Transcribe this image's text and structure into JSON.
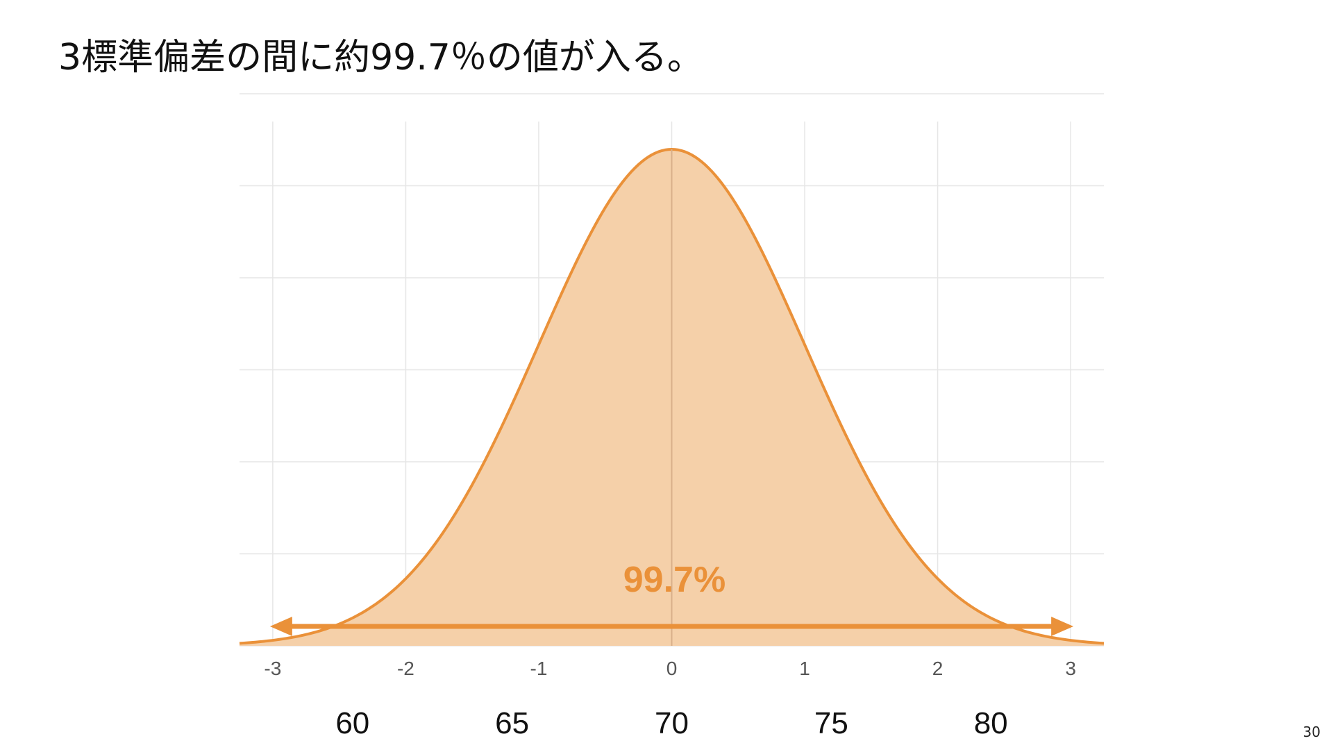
{
  "slide": {
    "title": "3標準偏差の間に約99.7％の値が入る。",
    "page_number": "30"
  },
  "colors": {
    "curve": "#ea9139",
    "fill": "#f5d0a9",
    "grid": "#e6e6e6",
    "tick_text": "#555555",
    "score_text": "#111111"
  },
  "chart_data": {
    "type": "area",
    "distribution": "normal",
    "mean": 0,
    "sd": 1,
    "xlim": [
      -3.25,
      3.25
    ],
    "x_ticks": [
      "-3",
      "-2",
      "-1",
      "0",
      "1",
      "2",
      "3"
    ],
    "x_tick_values": [
      -3,
      -2,
      -1,
      0,
      1,
      2,
      3
    ],
    "score_ticks": [
      "60",
      "65",
      "70",
      "75",
      "80"
    ],
    "score_tick_values": [
      -2.4,
      -1.2,
      0,
      1.2,
      2.4
    ],
    "grid": true,
    "annotation": {
      "text": "99.7%",
      "range": [
        -3,
        3
      ]
    }
  }
}
